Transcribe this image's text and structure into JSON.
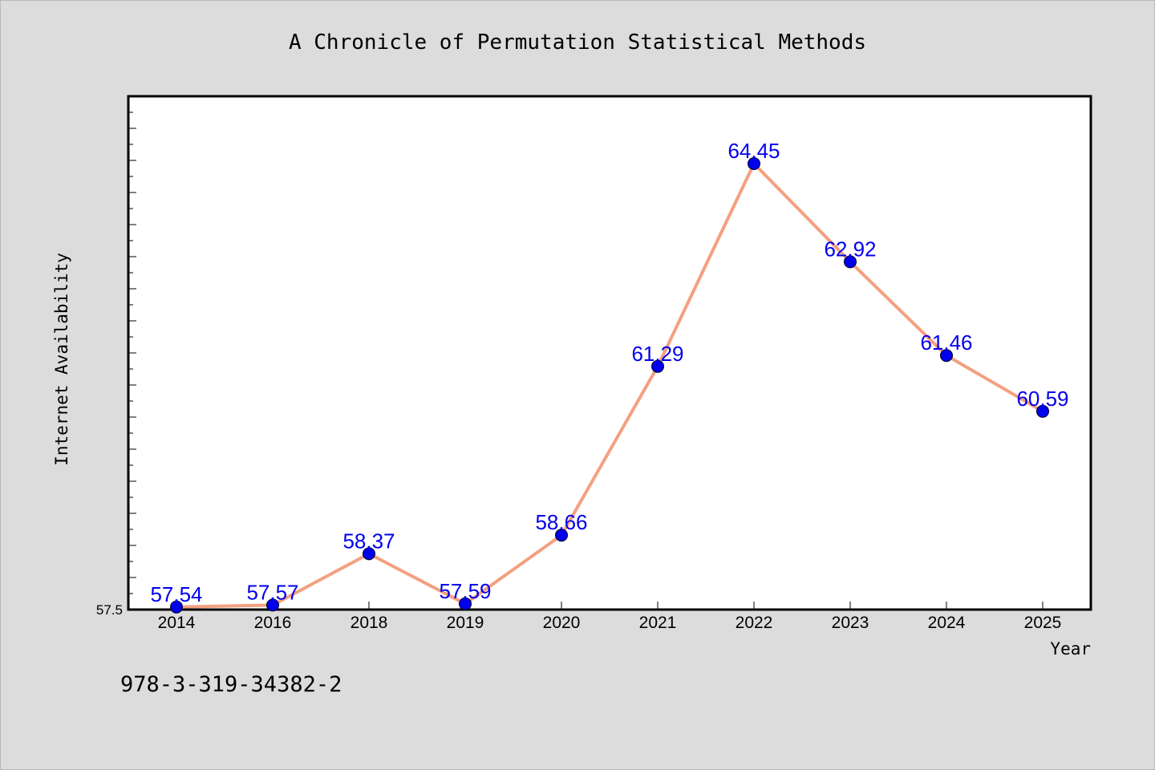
{
  "colors": {
    "background": "#dcdcdc",
    "plot_background": "#ffffff",
    "line": "#f4a080",
    "marker": "#0000ee",
    "data_label": "#0000ee"
  },
  "footnote": "978-3-319-34382-2",
  "chart_data": {
    "type": "line",
    "title": "A Chronicle of Permutation Statistical Methods",
    "xlabel": "Year",
    "ylabel": "Internet Availability",
    "categories": [
      "2014",
      "2016",
      "2018",
      "2019",
      "2020",
      "2021",
      "2022",
      "2023",
      "2024",
      "2025"
    ],
    "series": [
      {
        "values": [
          57.54,
          57.57,
          58.37,
          57.59,
          58.66,
          61.29,
          64.45,
          62.92,
          61.46,
          60.59
        ],
        "labels": [
          "57.54",
          "57.57",
          "58.37",
          "57.59",
          "58.66",
          "61.29",
          "64.45",
          "62.92",
          "61.46",
          "60.59"
        ]
      }
    ],
    "ylim": [
      57.5,
      65.5
    ],
    "yticks": [
      "57.5"
    ],
    "grid": false,
    "legend": "none"
  }
}
